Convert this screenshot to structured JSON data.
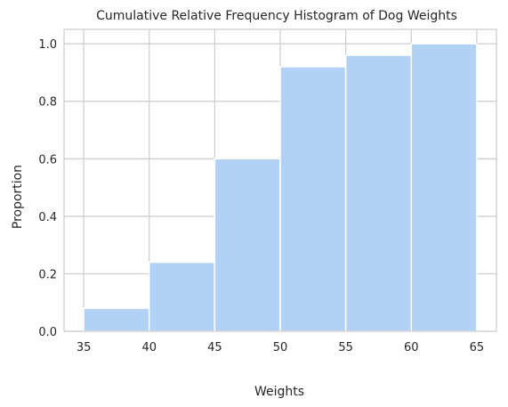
{
  "chart_data": {
    "type": "bar",
    "title": "Cumulative Relative Frequency Histogram of Dog Weights",
    "xlabel": "Weights",
    "ylabel": "Proportion",
    "bins": [
      {
        "start": 35,
        "end": 40,
        "value": 0.08
      },
      {
        "start": 40,
        "end": 45,
        "value": 0.24
      },
      {
        "start": 45,
        "end": 50,
        "value": 0.6
      },
      {
        "start": 50,
        "end": 55,
        "value": 0.92
      },
      {
        "start": 55,
        "end": 60,
        "value": 0.96
      },
      {
        "start": 60,
        "end": 65,
        "value": 1.0
      }
    ],
    "xlim": [
      33.5,
      66.5
    ],
    "ylim": [
      0,
      1.05
    ],
    "xticks": [
      35,
      40,
      45,
      50,
      55,
      60,
      65
    ],
    "xtick_labels": [
      "35",
      "40",
      "45",
      "50",
      "55",
      "60",
      "65"
    ],
    "yticks": [
      0.0,
      0.2,
      0.4,
      0.6,
      0.8,
      1.0
    ],
    "ytick_labels": [
      "0.0",
      "0.2",
      "0.4",
      "0.6",
      "0.8",
      "1.0"
    ],
    "grid": true,
    "bar_color": "#b1d1f5"
  }
}
